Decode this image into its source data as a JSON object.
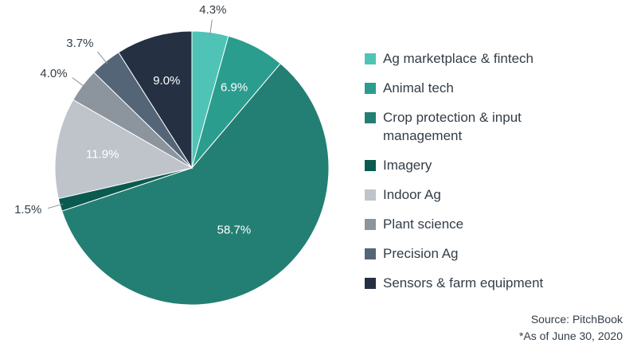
{
  "chart_data": {
    "type": "pie",
    "series": [
      {
        "name": "Ag marketplace & fintech",
        "value": 4.3,
        "label": "4.3%",
        "color": "#4fc4b6",
        "label_position": "outside",
        "label_color": "#333d47"
      },
      {
        "name": "Animal tech",
        "value": 6.9,
        "label": "6.9%",
        "color": "#2a9d8f",
        "label_position": "inside",
        "label_color": "#ffffff"
      },
      {
        "name": "Crop protection & input management",
        "value": 58.7,
        "label": "58.7%",
        "color": "#237f73",
        "label_position": "inside",
        "label_color": "#ffffff"
      },
      {
        "name": "Imagery",
        "value": 1.5,
        "label": "1.5%",
        "color": "#0b5a50",
        "label_position": "outside",
        "label_color": "#333d47"
      },
      {
        "name": "Indoor Ag",
        "value": 11.9,
        "label": "11.9%",
        "color": "#bfc3ca",
        "label_position": "inside",
        "label_color": "#ffffff"
      },
      {
        "name": "Plant science",
        "value": 4.0,
        "label": "4.0%",
        "color": "#8c949e",
        "label_position": "outside",
        "label_color": "#333d47"
      },
      {
        "name": "Precision Ag",
        "value": 3.7,
        "label": "3.7%",
        "color": "#556578",
        "label_position": "outside",
        "label_color": "#333d47"
      },
      {
        "name": "Sensors & farm equipment",
        "value": 9.0,
        "label": "9.0%",
        "color": "#253142",
        "label_position": "inside",
        "label_color": "#ffffff"
      }
    ],
    "start_angle_deg": 0,
    "direction": "clockwise",
    "legend_position": "right",
    "source": "Source: PitchBook",
    "note": "*As of June 30, 2020"
  }
}
